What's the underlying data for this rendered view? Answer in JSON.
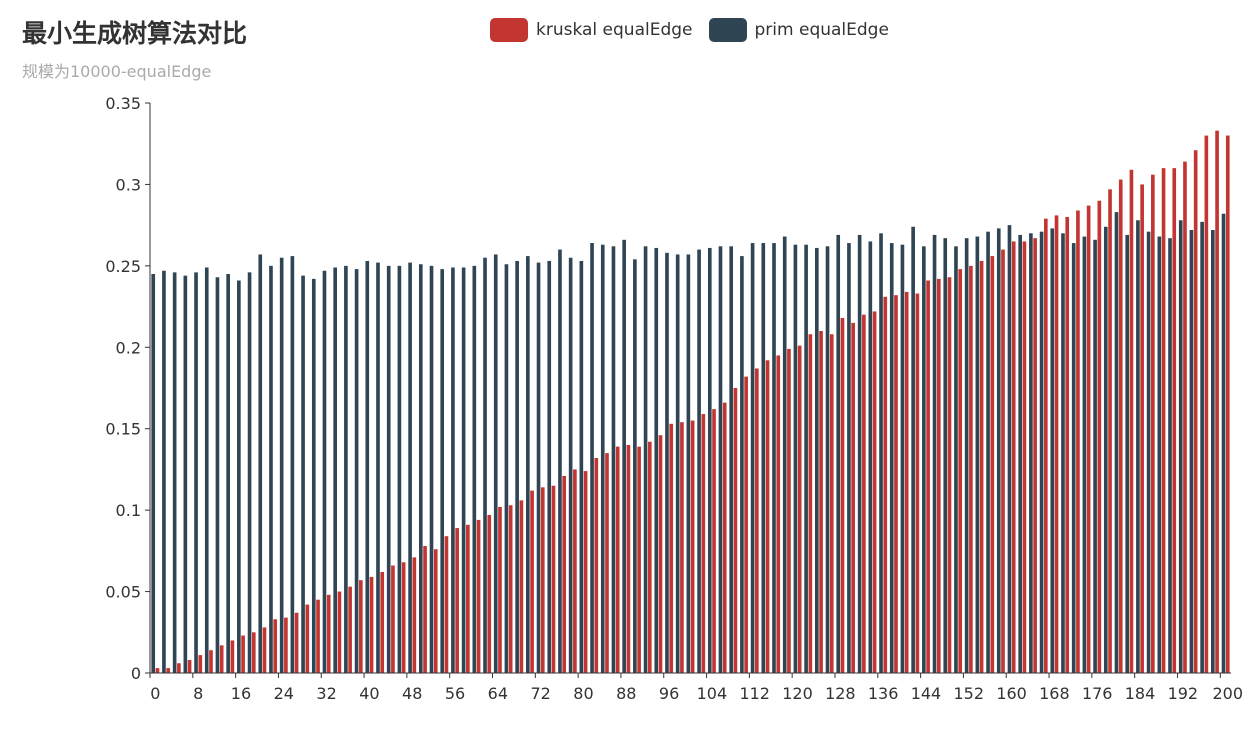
{
  "colors": {
    "kruskal": "#c23531",
    "prim": "#2f4554",
    "axis": "#333333"
  },
  "chart_data": {
    "type": "bar",
    "title": "最小生成树算法对比",
    "subtitle": "规模为10000-equalEdge",
    "legend_position": "top-center",
    "grid": false,
    "x_tick_labels": [
      "0",
      "8",
      "16",
      "24",
      "32",
      "40",
      "48",
      "56",
      "64",
      "72",
      "80",
      "88",
      "96",
      "104",
      "112",
      "120",
      "128",
      "136",
      "144",
      "152",
      "160",
      "168",
      "176",
      "184",
      "192",
      "200"
    ],
    "y_tick_labels": [
      "0",
      "0.05",
      "0.1",
      "0.15",
      "0.2",
      "0.25",
      "0.3",
      "0.35"
    ],
    "ylim": [
      0,
      0.35
    ],
    "series": [
      {
        "name": "kruskal equalEdge",
        "values": [
          0.003,
          0.003,
          0.006,
          0.008,
          0.011,
          0.014,
          0.017,
          0.02,
          0.023,
          0.025,
          0.028,
          0.033,
          0.034,
          0.037,
          0.042,
          0.045,
          0.048,
          0.05,
          0.053,
          0.057,
          0.059,
          0.062,
          0.066,
          0.068,
          0.071,
          0.078,
          0.076,
          0.084,
          0.089,
          0.091,
          0.094,
          0.097,
          0.102,
          0.103,
          0.106,
          0.112,
          0.114,
          0.115,
          0.121,
          0.125,
          0.124,
          0.132,
          0.135,
          0.139,
          0.14,
          0.139,
          0.142,
          0.146,
          0.153,
          0.154,
          0.155,
          0.159,
          0.162,
          0.166,
          0.175,
          0.182,
          0.187,
          0.192,
          0.195,
          0.199,
          0.201,
          0.208,
          0.21,
          0.208,
          0.218,
          0.215,
          0.22,
          0.222,
          0.231,
          0.232,
          0.234,
          0.233,
          0.241,
          0.242,
          0.243,
          0.248,
          0.25,
          0.253,
          0.256,
          0.26,
          0.265,
          0.265,
          0.267,
          0.279,
          0.281,
          0.28,
          0.284,
          0.287,
          0.29,
          0.297,
          0.303,
          0.309,
          0.3,
          0.306,
          0.31,
          0.31,
          0.314,
          0.321,
          0.33,
          0.333,
          0.33
        ]
      },
      {
        "name": "prim equalEdge",
        "values": [
          0.245,
          0.247,
          0.246,
          0.244,
          0.246,
          0.249,
          0.243,
          0.245,
          0.241,
          0.246,
          0.257,
          0.25,
          0.255,
          0.256,
          0.244,
          0.242,
          0.247,
          0.249,
          0.25,
          0.248,
          0.253,
          0.252,
          0.25,
          0.25,
          0.252,
          0.251,
          0.25,
          0.248,
          0.249,
          0.249,
          0.25,
          0.255,
          0.257,
          0.251,
          0.253,
          0.256,
          0.252,
          0.253,
          0.26,
          0.255,
          0.253,
          0.264,
          0.263,
          0.262,
          0.266,
          0.254,
          0.262,
          0.261,
          0.258,
          0.257,
          0.257,
          0.26,
          0.261,
          0.262,
          0.262,
          0.256,
          0.264,
          0.264,
          0.264,
          0.268,
          0.263,
          0.263,
          0.261,
          0.262,
          0.269,
          0.264,
          0.269,
          0.265,
          0.27,
          0.264,
          0.263,
          0.274,
          0.262,
          0.269,
          0.267,
          0.262,
          0.267,
          0.268,
          0.271,
          0.273,
          0.275,
          0.269,
          0.27,
          0.271,
          0.273,
          0.27,
          0.264,
          0.268,
          0.266,
          0.274,
          0.283,
          0.269,
          0.278,
          0.271,
          0.268,
          0.267,
          0.278,
          0.272,
          0.277,
          0.272,
          0.282
        ]
      }
    ]
  }
}
